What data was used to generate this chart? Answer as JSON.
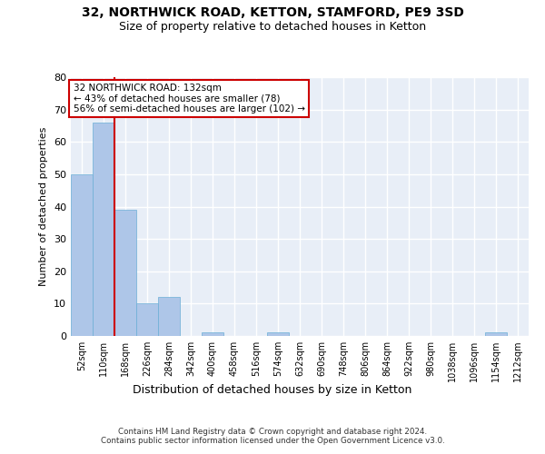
{
  "title1": "32, NORTHWICK ROAD, KETTON, STAMFORD, PE9 3SD",
  "title2": "Size of property relative to detached houses in Ketton",
  "xlabel": "Distribution of detached houses by size in Ketton",
  "ylabel": "Number of detached properties",
  "bar_labels": [
    "52sqm",
    "110sqm",
    "168sqm",
    "226sqm",
    "284sqm",
    "342sqm",
    "400sqm",
    "458sqm",
    "516sqm",
    "574sqm",
    "632sqm",
    "690sqm",
    "748sqm",
    "806sqm",
    "864sqm",
    "922sqm",
    "980sqm",
    "1038sqm",
    "1096sqm",
    "1154sqm",
    "1212sqm"
  ],
  "bar_values": [
    50,
    66,
    39,
    10,
    12,
    0,
    1,
    0,
    0,
    1,
    0,
    0,
    0,
    0,
    0,
    0,
    0,
    0,
    0,
    1,
    0
  ],
  "bar_color": "#aec6e8",
  "bar_edge_color": "#6aaed6",
  "ylim": [
    0,
    80
  ],
  "yticks": [
    0,
    10,
    20,
    30,
    40,
    50,
    60,
    70,
    80
  ],
  "red_line_bin_index": 1,
  "annotation_text": "32 NORTHWICK ROAD: 132sqm\n← 43% of detached houses are smaller (78)\n56% of semi-detached houses are larger (102) →",
  "footer_text": "Contains HM Land Registry data © Crown copyright and database right 2024.\nContains public sector information licensed under the Open Government Licence v3.0.",
  "background_color": "#e8eef7",
  "grid_color": "#ffffff",
  "annotation_box_color": "#ffffff",
  "annotation_box_edge_color": "#cc0000",
  "red_line_color": "#cc0000",
  "title1_fontsize": 10,
  "title2_fontsize": 9,
  "ylabel_fontsize": 8,
  "xlabel_fontsize": 9,
  "tick_fontsize": 7,
  "annotation_fontsize": 7.5
}
